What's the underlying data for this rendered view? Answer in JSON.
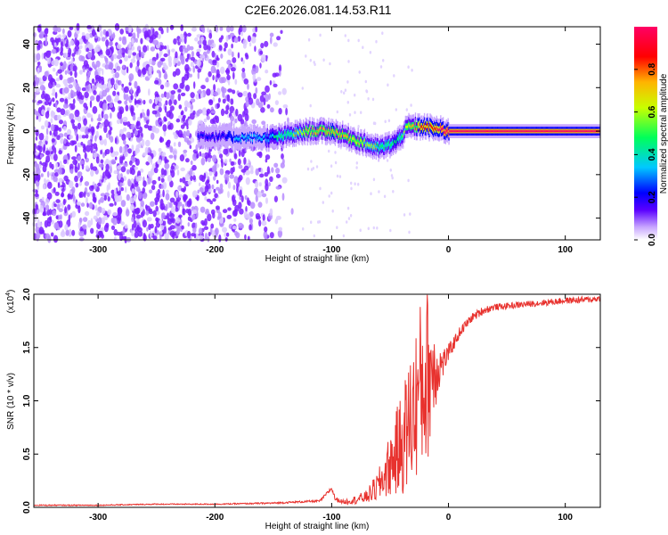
{
  "title": "C2E6.2026.081.14.53.R11",
  "colors": {
    "snr_line": "#e8322e",
    "background": "#ffffff",
    "axes": "#000000",
    "colormap": [
      "#ffffff",
      "#c8a6ff",
      "#5a00ff",
      "#0000ff",
      "#00c8ff",
      "#00ff5a",
      "#c8ff00",
      "#ffb400",
      "#ff0000",
      "#ff0064"
    ]
  },
  "chart_data": [
    {
      "type": "heatmap",
      "title": "",
      "xlabel": "Height of straight line (km)",
      "ylabel": "Frequency (Hz)",
      "xlim": [
        -355,
        130
      ],
      "ylim": [
        -50,
        48
      ],
      "xticks": [
        "-300",
        "-200",
        "-100",
        "0",
        "100"
      ],
      "xtick_values": [
        -300,
        -200,
        -100,
        0,
        100
      ],
      "yticks": [
        "-40",
        "-20",
        "0",
        "20",
        "40"
      ],
      "ytick_values": [
        -40,
        -20,
        0,
        20,
        40
      ],
      "colorbar": {
        "label": "Normalized spectral amplitude",
        "range": [
          0,
          1
        ],
        "ticks": [
          "0.0",
          "0.2",
          "0.4",
          "0.6",
          "0.8"
        ],
        "tick_values": [
          0.0,
          0.2,
          0.4,
          0.6,
          0.8
        ]
      },
      "ridge": {
        "description_values_x": [
          -215,
          -180,
          -150,
          -120,
          -100,
          -80,
          -60,
          -45,
          -35,
          -20,
          0,
          50,
          100,
          130
        ],
        "center_freq": [
          -2,
          -3,
          -3,
          0,
          0,
          -4,
          -8,
          -5,
          2,
          2,
          0,
          0,
          0,
          0
        ],
        "peak_amplitude": [
          0.3,
          0.4,
          0.5,
          0.7,
          0.8,
          0.7,
          0.6,
          0.5,
          0.7,
          0.9,
          1.0,
          1.0,
          1.0,
          1.0
        ]
      },
      "noise_region_x": [
        -355,
        -130
      ]
    },
    {
      "type": "line",
      "title": "",
      "xlabel": "Height of straight line (km)",
      "ylabel": "SNR (10 * v/v)",
      "y_multiplier_label": "(x10",
      "y_multiplier_exp": "4",
      "y_multiplier_close": ")",
      "xlim": [
        -355,
        130
      ],
      "ylim": [
        0,
        2.0
      ],
      "xticks": [
        "-300",
        "-200",
        "-100",
        "0",
        "100"
      ],
      "xtick_values": [
        -300,
        -200,
        -100,
        0,
        100
      ],
      "yticks": [
        "0.0",
        "0.5",
        "1.0",
        "1.5",
        "2.0"
      ],
      "ytick_values": [
        0,
        0.5,
        1.0,
        1.5,
        2.0
      ],
      "series": [
        {
          "x": [
            -355,
            -300,
            -250,
            -200,
            -150,
            -110,
            -100,
            -97,
            -90,
            -80,
            -70,
            -60,
            -50,
            -40,
            -30,
            -25,
            -20,
            -15,
            -10,
            -5,
            0,
            10,
            20,
            30,
            40,
            60,
            80,
            100,
            120,
            130
          ],
          "y": [
            0.02,
            0.02,
            0.03,
            0.03,
            0.04,
            0.06,
            0.18,
            0.08,
            0.05,
            0.07,
            0.1,
            0.2,
            0.4,
            0.6,
            0.9,
            1.1,
            1.2,
            1.3,
            1.3,
            1.35,
            1.45,
            1.65,
            1.78,
            1.85,
            1.88,
            1.9,
            1.92,
            1.94,
            1.95,
            1.96
          ],
          "noise_amplitude": [
            0.005,
            0.005,
            0.005,
            0.005,
            0.008,
            0.01,
            0.02,
            0.02,
            0.02,
            0.04,
            0.06,
            0.15,
            0.3,
            0.5,
            0.7,
            0.8,
            0.9,
            0.7,
            0.3,
            0.15,
            0.08,
            0.05,
            0.04,
            0.04,
            0.03,
            0.03,
            0.03,
            0.03,
            0.03,
            0.03
          ]
        }
      ]
    }
  ]
}
